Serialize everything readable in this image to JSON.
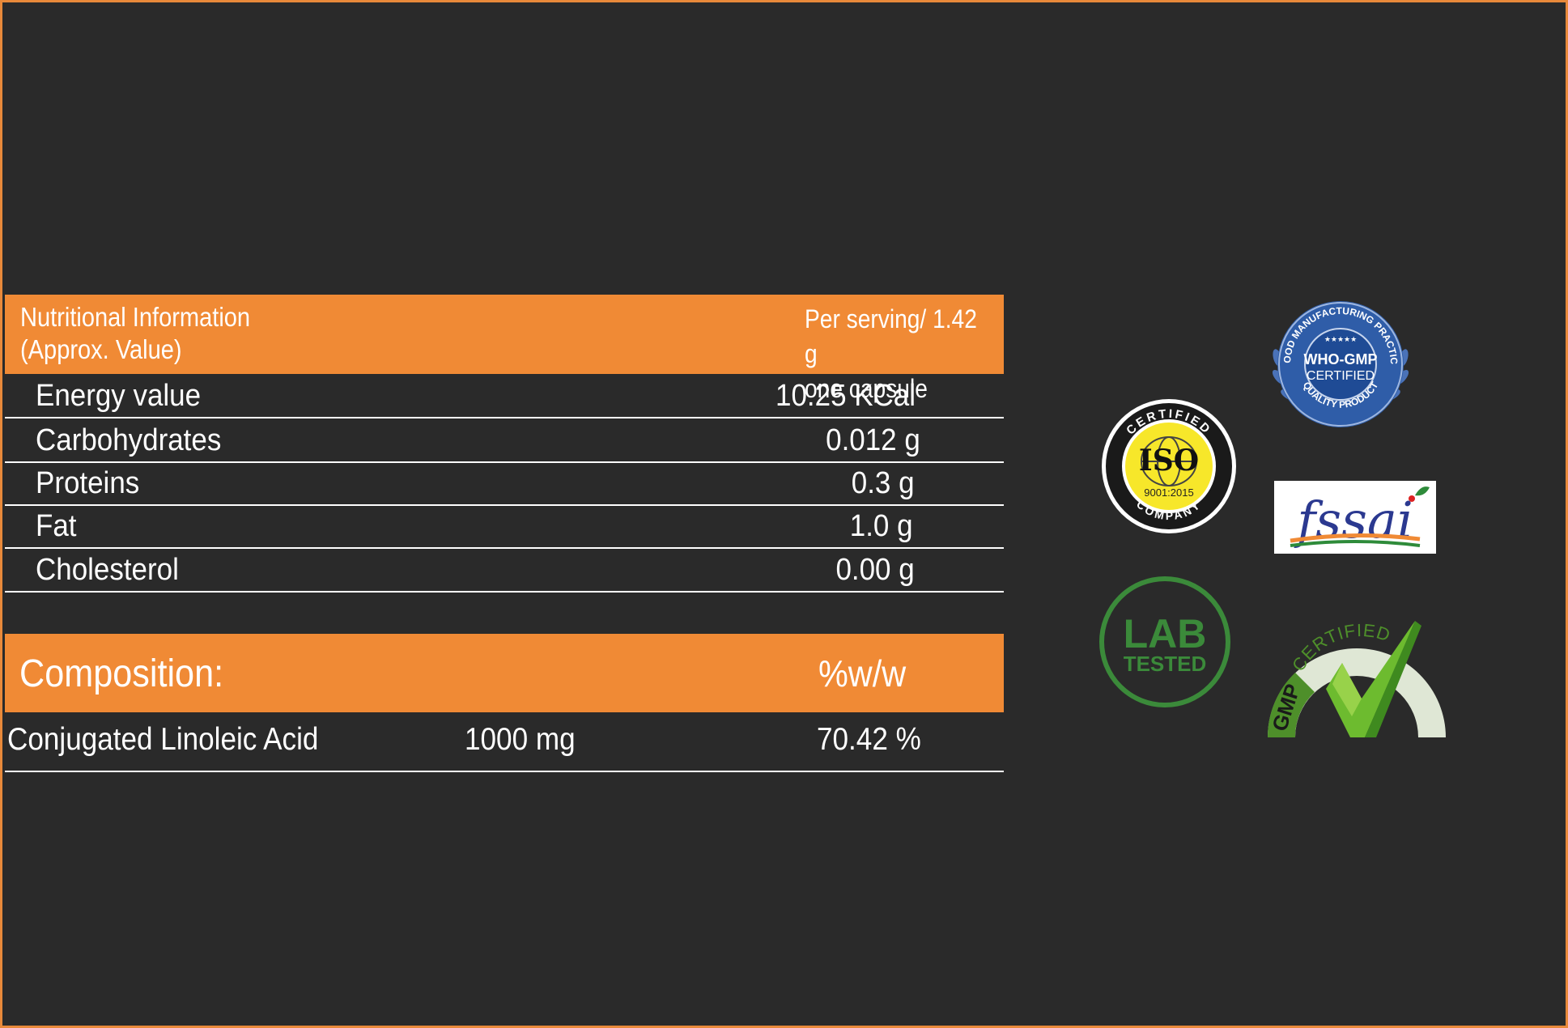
{
  "nutrition": {
    "header_left_line1": "Nutritional Information",
    "header_left_line2": "(Approx. Value)",
    "header_right_line1": "Per serving/ 1.42 g",
    "header_right_line2": "one capsule",
    "rows": [
      {
        "label": "Energy value",
        "value": "10.25 KCal"
      },
      {
        "label": "Carbohydrates",
        "value": "0.012 g"
      },
      {
        "label": "Proteins",
        "value": "0.3 g"
      },
      {
        "label": "Fat",
        "value": "1.0 g"
      },
      {
        "label": "Cholesterol",
        "value": "0.00 g"
      }
    ]
  },
  "composition": {
    "header_left": "Composition:",
    "header_right": "%w/w",
    "rows": [
      {
        "ingredient": "Conjugated Linoleic Acid",
        "amount": "1000 mg",
        "percent": "70.42 %"
      }
    ]
  },
  "badges": {
    "who_gmp": {
      "top_arc": "GOOD MANUFACTURING PRACTICE",
      "line1": "WHO-GMP",
      "line2": "CERTIFIED",
      "bottom_arc": "QUALITY PRODUCT",
      "icon": "who-gmp-seal-icon"
    },
    "iso": {
      "top_arc": "CERTIFIED",
      "main": "ISO",
      "standard": "9001:2015",
      "bottom_arc": "COMPANY",
      "icon": "iso-seal-icon"
    },
    "fssai": {
      "text": "fssai",
      "icon": "fssai-logo-icon"
    },
    "lab": {
      "line1": "LAB",
      "line2": "TESTED",
      "icon": "lab-tested-icon"
    },
    "gmp": {
      "arc": "CERTIFIED",
      "side": "GMP",
      "icon": "gmp-certified-check-icon"
    }
  },
  "colors": {
    "background": "#2a2a2a",
    "accent": "#f08a35",
    "who_blue": "#2f5da8",
    "iso_yellow": "#f7e72a",
    "lab_green": "#3b8a3a",
    "gmp_green": "#6dbb2f"
  }
}
